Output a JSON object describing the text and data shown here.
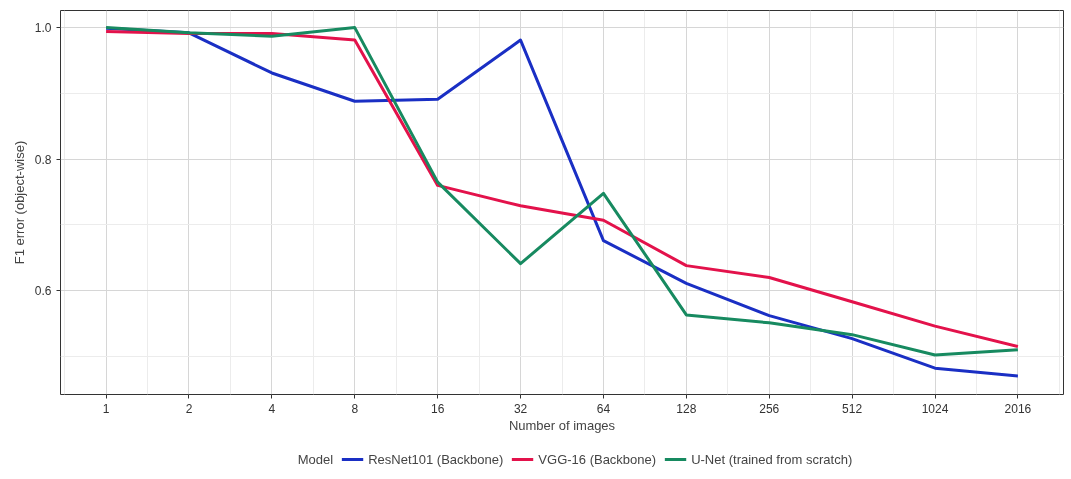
{
  "chart_data": {
    "type": "line",
    "xlabel": "Number of images",
    "ylabel": "F1 error (object-wise)",
    "legend_title": "Model",
    "categories": [
      "1",
      "2",
      "4",
      "8",
      "16",
      "32",
      "64",
      "128",
      "256",
      "512",
      "1024",
      "2016"
    ],
    "series": [
      {
        "name": "ResNet101 (Backbone)",
        "color": "#1a2fc4",
        "values": [
          0.999,
          0.992,
          0.931,
          0.888,
          0.891,
          0.981,
          0.676,
          0.611,
          0.562,
          0.527,
          0.482,
          0.47
        ]
      },
      {
        "name": "VGG-16 (Backbone)",
        "color": "#e3124b",
        "values": [
          0.994,
          0.991,
          0.991,
          0.981,
          0.76,
          0.729,
          0.707,
          0.638,
          0.62,
          0.583,
          0.546,
          0.515
        ]
      },
      {
        "name": "U-Net (trained from scratch)",
        "color": "#178a60",
        "values": [
          1.0,
          0.992,
          0.987,
          1.0,
          0.765,
          0.641,
          0.748,
          0.563,
          0.551,
          0.533,
          0.502,
          0.51
        ]
      }
    ],
    "ylim": [
      0.442,
      1.026
    ],
    "yticks": [
      {
        "value": 0.6,
        "label": "0.6"
      },
      {
        "value": 0.8,
        "label": "0.8"
      },
      {
        "value": 1.0,
        "label": "1.0"
      }
    ],
    "grid": true,
    "legend": "bottom",
    "marker": "none",
    "line_style": "solid"
  }
}
